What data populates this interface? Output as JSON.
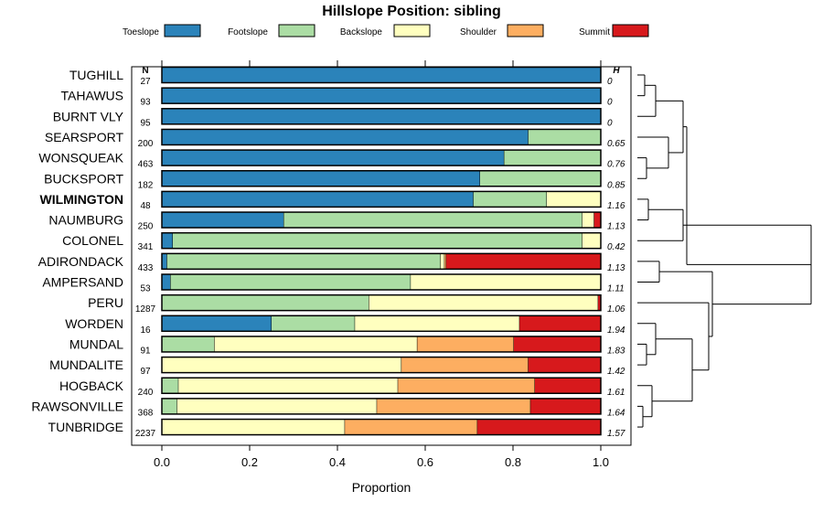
{
  "chart_data": {
    "type": "bar",
    "stacked": true,
    "orientation": "horizontal",
    "title": "Hillslope Position: sibling",
    "xlabel": "Proportion",
    "xlim": [
      0,
      1
    ],
    "x_ticks": [
      "0.0",
      "0.2",
      "0.4",
      "0.6",
      "0.8",
      "1.0"
    ],
    "n_header": "N",
    "h_header": "H",
    "legend_position": "top",
    "legend": [
      {
        "name": "Toeslope",
        "color": "#2b83ba"
      },
      {
        "name": "Footslope",
        "color": "#abdda4"
      },
      {
        "name": "Backslope",
        "color": "#ffffbf"
      },
      {
        "name": "Shoulder",
        "color": "#fdae61"
      },
      {
        "name": "Summit",
        "color": "#d7191c"
      }
    ],
    "highlighted_category": "WILMINGTON",
    "categories": [
      "TUGHILL",
      "TAHAWUS",
      "BURNT VLY",
      "SEARSPORT",
      "WONSQUEAK",
      "BUCKSPORT",
      "WILMINGTON",
      "NAUMBURG",
      "COLONEL",
      "ADIRONDACK",
      "AMPERSAND",
      "PERU",
      "WORDEN",
      "MUNDAL",
      "MUNDALITE",
      "HOGBACK",
      "RAWSONVILLE",
      "TUNBRIDGE"
    ],
    "n": [
      "27",
      "93",
      "95",
      "200",
      "463",
      "182",
      "48",
      "250",
      "341",
      "433",
      "53",
      "1287",
      "16",
      "91",
      "97",
      "240",
      "368",
      "2237"
    ],
    "h": [
      "0",
      "0",
      "0",
      "0.65",
      "0.76",
      "0.85",
      "1.16",
      "1.13",
      "0.42",
      "1.13",
      "1.11",
      "1.06",
      "1.94",
      "1.83",
      "1.42",
      "1.61",
      "1.64",
      "1.57"
    ],
    "series": [
      {
        "name": "Toeslope",
        "values": [
          1.0,
          1.0,
          1.0,
          0.835,
          0.78,
          0.725,
          0.71,
          0.278,
          0.025,
          0.012,
          0.02,
          0.0,
          0.25,
          0.0,
          0.0,
          0.0,
          0.0,
          0.0
        ]
      },
      {
        "name": "Footslope",
        "values": [
          0.0,
          0.0,
          0.0,
          0.165,
          0.22,
          0.275,
          0.167,
          0.68,
          0.933,
          0.623,
          0.547,
          0.472,
          0.19,
          0.12,
          0.0,
          0.038,
          0.035,
          0.0
        ]
      },
      {
        "name": "Backslope",
        "values": [
          0.0,
          0.0,
          0.0,
          0.0,
          0.0,
          0.0,
          0.123,
          0.027,
          0.042,
          0.009,
          0.433,
          0.522,
          0.375,
          0.462,
          0.546,
          0.5,
          0.455,
          0.417
        ]
      },
      {
        "name": "Shoulder",
        "values": [
          0.0,
          0.0,
          0.0,
          0.0,
          0.0,
          0.0,
          0.0,
          0.0,
          0.0,
          0.004,
          0.0,
          0.0,
          0.0,
          0.22,
          0.289,
          0.312,
          0.35,
          0.302
        ]
      },
      {
        "name": "Summit",
        "values": [
          0.0,
          0.0,
          0.0,
          0.0,
          0.0,
          0.0,
          0.0,
          0.015,
          0.0,
          0.352,
          0.0,
          0.006,
          0.185,
          0.198,
          0.165,
          0.15,
          0.16,
          0.281
        ]
      }
    ],
    "dendrogram": {
      "heights": {
        "a": 0.04,
        "b": 0.1,
        "c": 0.25,
        "d": 0.12,
        "e": 0.06,
        "f": 0.05,
        "g": 0.17,
        "h": 0.25,
        "i": 0.03,
        "j": 0.08,
        "k": 0.05,
        "l": 0.1,
        "m": 0.3,
        "n": 0.39,
        "o": 0.41,
        "p": 0.95,
        "q": 0.27
      },
      "tree": [
        "q",
        [
          "c",
          [
            "b",
            [
              "a",
              0,
              1
            ],
            2
          ],
          [
            "g",
            3,
            [
              "f",
              4,
              5
            ]
          ]
        ],
        [
          "p",
          [
            "h",
            [
              "e",
              6,
              7
            ],
            8
          ],
          [
            "o",
            [
              "d",
              9,
              10
            ],
            [
              "n",
              11,
              [
                "m",
                [
                  "l",
                  12,
                  [
                    "k",
                    13,
                    14
                  ]
                ],
                [
                  "j",
                  15,
                  [
                    "i",
                    16,
                    17
                  ]
                ]
              ]
            ]
          ]
        ]
      ]
    }
  }
}
